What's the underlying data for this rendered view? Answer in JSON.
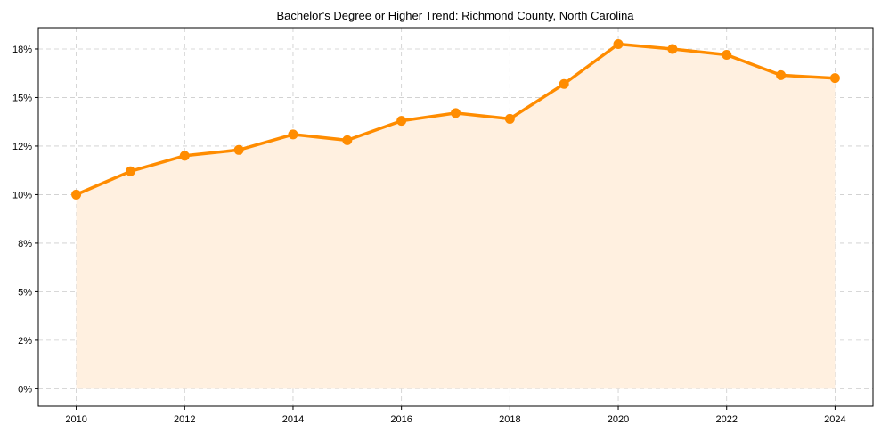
{
  "chart_data": {
    "type": "line",
    "title": "Bachelor's Degree or Higher Trend: Richmond County, North Carolina",
    "xlabel": "",
    "ylabel": "",
    "x": [
      2010,
      2011,
      2012,
      2013,
      2014,
      2015,
      2016,
      2017,
      2018,
      2019,
      2020,
      2021,
      2022,
      2023,
      2024
    ],
    "series": [
      {
        "name": "Bachelor's Degree or Higher",
        "values": [
          10.0,
          11.2,
          12.0,
          12.3,
          13.1,
          12.8,
          13.8,
          14.2,
          13.9,
          15.7,
          17.75,
          17.5,
          17.2,
          16.15,
          16.0
        ],
        "color": "#ff8c00"
      }
    ],
    "fill_color": "#fff0e0",
    "xticks": [
      2010,
      2012,
      2014,
      2016,
      2018,
      2020,
      2022,
      2024
    ],
    "yticks": [
      0,
      2.5,
      5,
      7.5,
      10,
      12.5,
      15,
      17.5
    ],
    "ytick_labels": [
      "0%",
      "2%",
      "5%",
      "8%",
      "10%",
      "12%",
      "15%",
      "18%"
    ],
    "xlim": [
      2009.3,
      2024.7
    ],
    "ylim": [
      -0.9,
      18.6
    ],
    "grid": true
  }
}
